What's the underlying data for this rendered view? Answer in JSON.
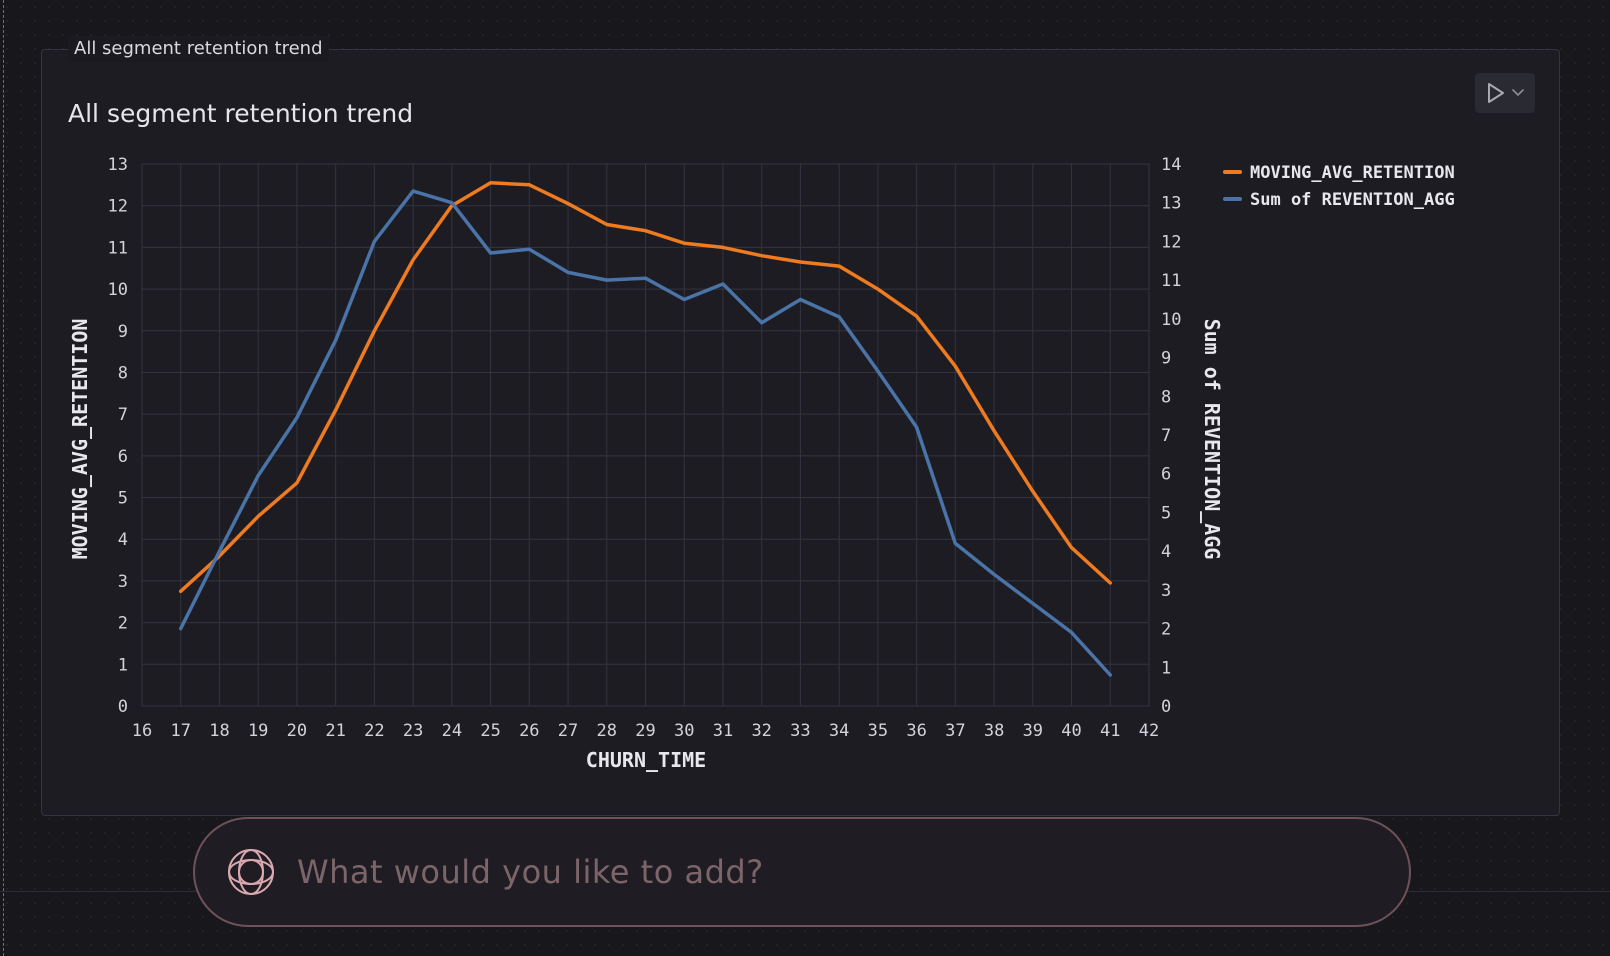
{
  "card": {
    "caption": "All segment retention trend"
  },
  "prompt": {
    "placeholder": "What would you like to add?"
  },
  "colors": {
    "background": "#17171c",
    "card": "#1d1c23",
    "series_orange": "#ee7b1f",
    "series_blue": "#4a74a8",
    "prompt_border": "#6f5259"
  },
  "icons": {
    "run": "play-icon",
    "dropdown": "chevron-down-icon",
    "assistant": "assistant-logo-icon"
  },
  "chart_data": {
    "type": "line",
    "title": "All segment retention trend",
    "xlabel": "CHURN_TIME",
    "ylabel": "MOVING_AVG_RETENTION",
    "y2label": "Sum of REVENTION_AGG",
    "xlim": [
      16,
      42
    ],
    "ylim": [
      0,
      13
    ],
    "y2lim": [
      0,
      14
    ],
    "x_ticks": [
      16,
      17,
      18,
      19,
      20,
      21,
      22,
      23,
      24,
      25,
      26,
      27,
      28,
      29,
      30,
      31,
      32,
      33,
      34,
      35,
      36,
      37,
      38,
      39,
      40,
      41,
      42
    ],
    "y_ticks": [
      0,
      1,
      2,
      3,
      4,
      5,
      6,
      7,
      8,
      9,
      10,
      11,
      12,
      13
    ],
    "y2_ticks": [
      0,
      1,
      2,
      3,
      4,
      5,
      6,
      7,
      8,
      9,
      10,
      11,
      12,
      13,
      14
    ],
    "grid": true,
    "legend_position": "top-right",
    "x": [
      17,
      18,
      19,
      20,
      21,
      22,
      23,
      24,
      25,
      26,
      27,
      28,
      29,
      30,
      31,
      32,
      33,
      34,
      35,
      36,
      37,
      38,
      39,
      40,
      41
    ],
    "series": [
      {
        "name": "MOVING_AVG_RETENTION",
        "axis": "left",
        "color": "#ee7b1f",
        "values": [
          2.75,
          3.6,
          4.55,
          5.35,
          7.1,
          9.0,
          10.7,
          12.0,
          12.55,
          12.5,
          12.05,
          11.55,
          11.4,
          11.1,
          11.0,
          10.8,
          10.65,
          10.55,
          10.0,
          9.35,
          8.15,
          6.6,
          5.15,
          3.8,
          2.95
        ]
      },
      {
        "name": "Sum of REVENTION_AGG",
        "axis": "right",
        "color": "#4a74a8",
        "values": [
          2.0,
          4.0,
          5.95,
          7.45,
          9.45,
          12.0,
          13.3,
          13.0,
          11.7,
          11.8,
          11.2,
          11.0,
          11.05,
          10.5,
          10.9,
          9.9,
          10.5,
          10.05,
          8.65,
          7.2,
          4.2,
          3.4,
          2.65,
          1.9,
          0.8
        ]
      }
    ]
  }
}
